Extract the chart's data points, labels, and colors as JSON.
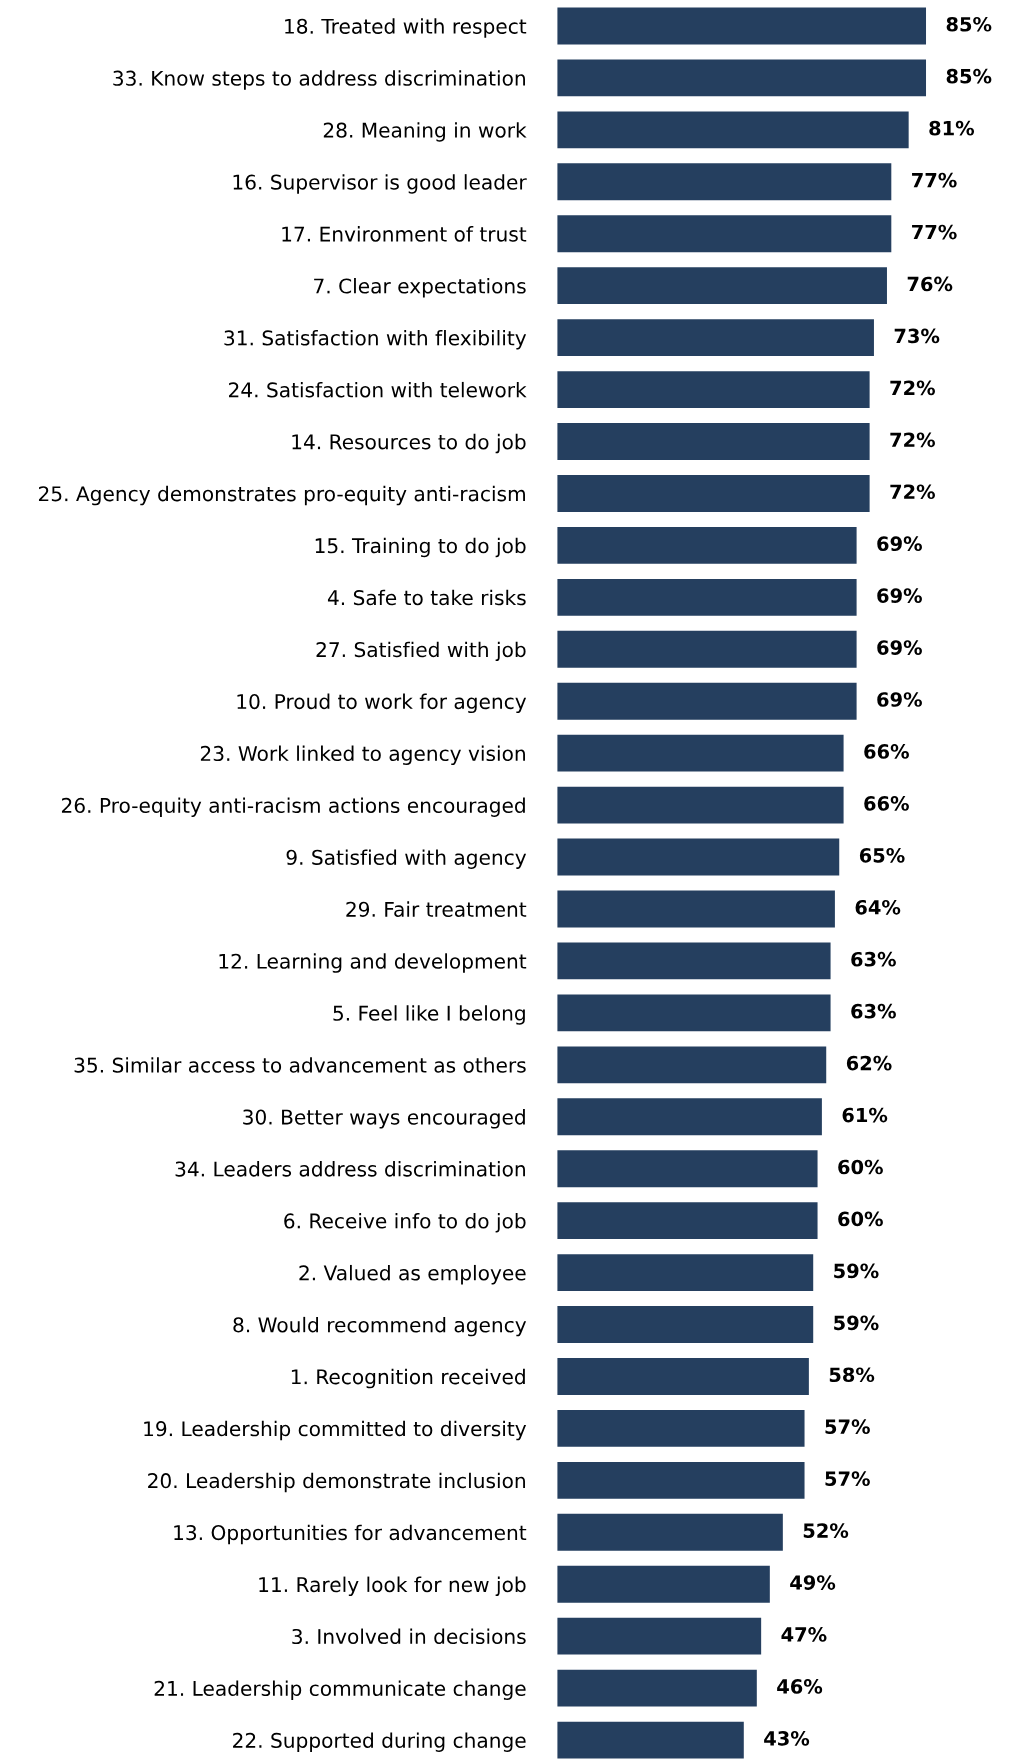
{
  "chart_data": {
    "type": "bar",
    "orientation": "horizontal",
    "tick_labels": "y",
    "categories": [
      "18. Treated with respect",
      "33. Know steps to address discrimination",
      "28. Meaning in work",
      "16. Supervisor is good leader",
      "17. Environment of trust",
      "7. Clear expectations",
      "31. Satisfaction with flexibility",
      "24. Satisfaction with telework",
      "14. Resources to do job",
      "25. Agency demonstrates pro-equity anti-racism",
      "15. Training to do job",
      "4. Safe to take risks",
      "27. Satisfied with job",
      "10. Proud to work for agency",
      "23. Work linked to agency vision",
      "26. Pro-equity anti-racism actions encouraged",
      "9. Satisfied with agency",
      "29. Fair treatment",
      "12. Learning and development",
      "5. Feel like I belong",
      "35. Similar access to advancement as others",
      "30. Better ways encouraged",
      "34. Leaders address discrimination",
      "6. Receive info to do job",
      "2. Valued as employee",
      "8. Would recommend agency",
      "1. Recognition received",
      "19. Leadership committed to diversity",
      "20. Leadership demonstrate inclusion",
      "13. Opportunities for advancement",
      "11. Rarely look for new job",
      "3. Involved in decisions",
      "21. Leadership communicate change",
      "22. Supported during change"
    ],
    "series": [
      {
        "color": "#253f5f",
        "values": [
          85,
          85,
          81,
          77,
          77,
          76,
          73,
          72,
          72,
          72,
          69,
          69,
          69,
          69,
          66,
          66,
          65,
          64,
          63,
          63,
          62,
          61,
          60,
          60,
          59,
          59,
          58,
          57,
          57,
          52,
          49,
          47,
          46,
          43
        ],
        "value_labels": [
          "85%",
          "85%",
          "81%",
          "77%",
          "77%",
          "76%",
          "73%",
          "72%",
          "72%",
          "72%",
          "69%",
          "69%",
          "69%",
          "69%",
          "66%",
          "66%",
          "65%",
          "64%",
          "63%",
          "63%",
          "62%",
          "61%",
          "60%",
          "60%",
          "59%",
          "59%",
          "58%",
          "57%",
          "57%",
          "52%",
          "49%",
          "47%",
          "46%",
          "43%"
        ]
      }
    ]
  }
}
